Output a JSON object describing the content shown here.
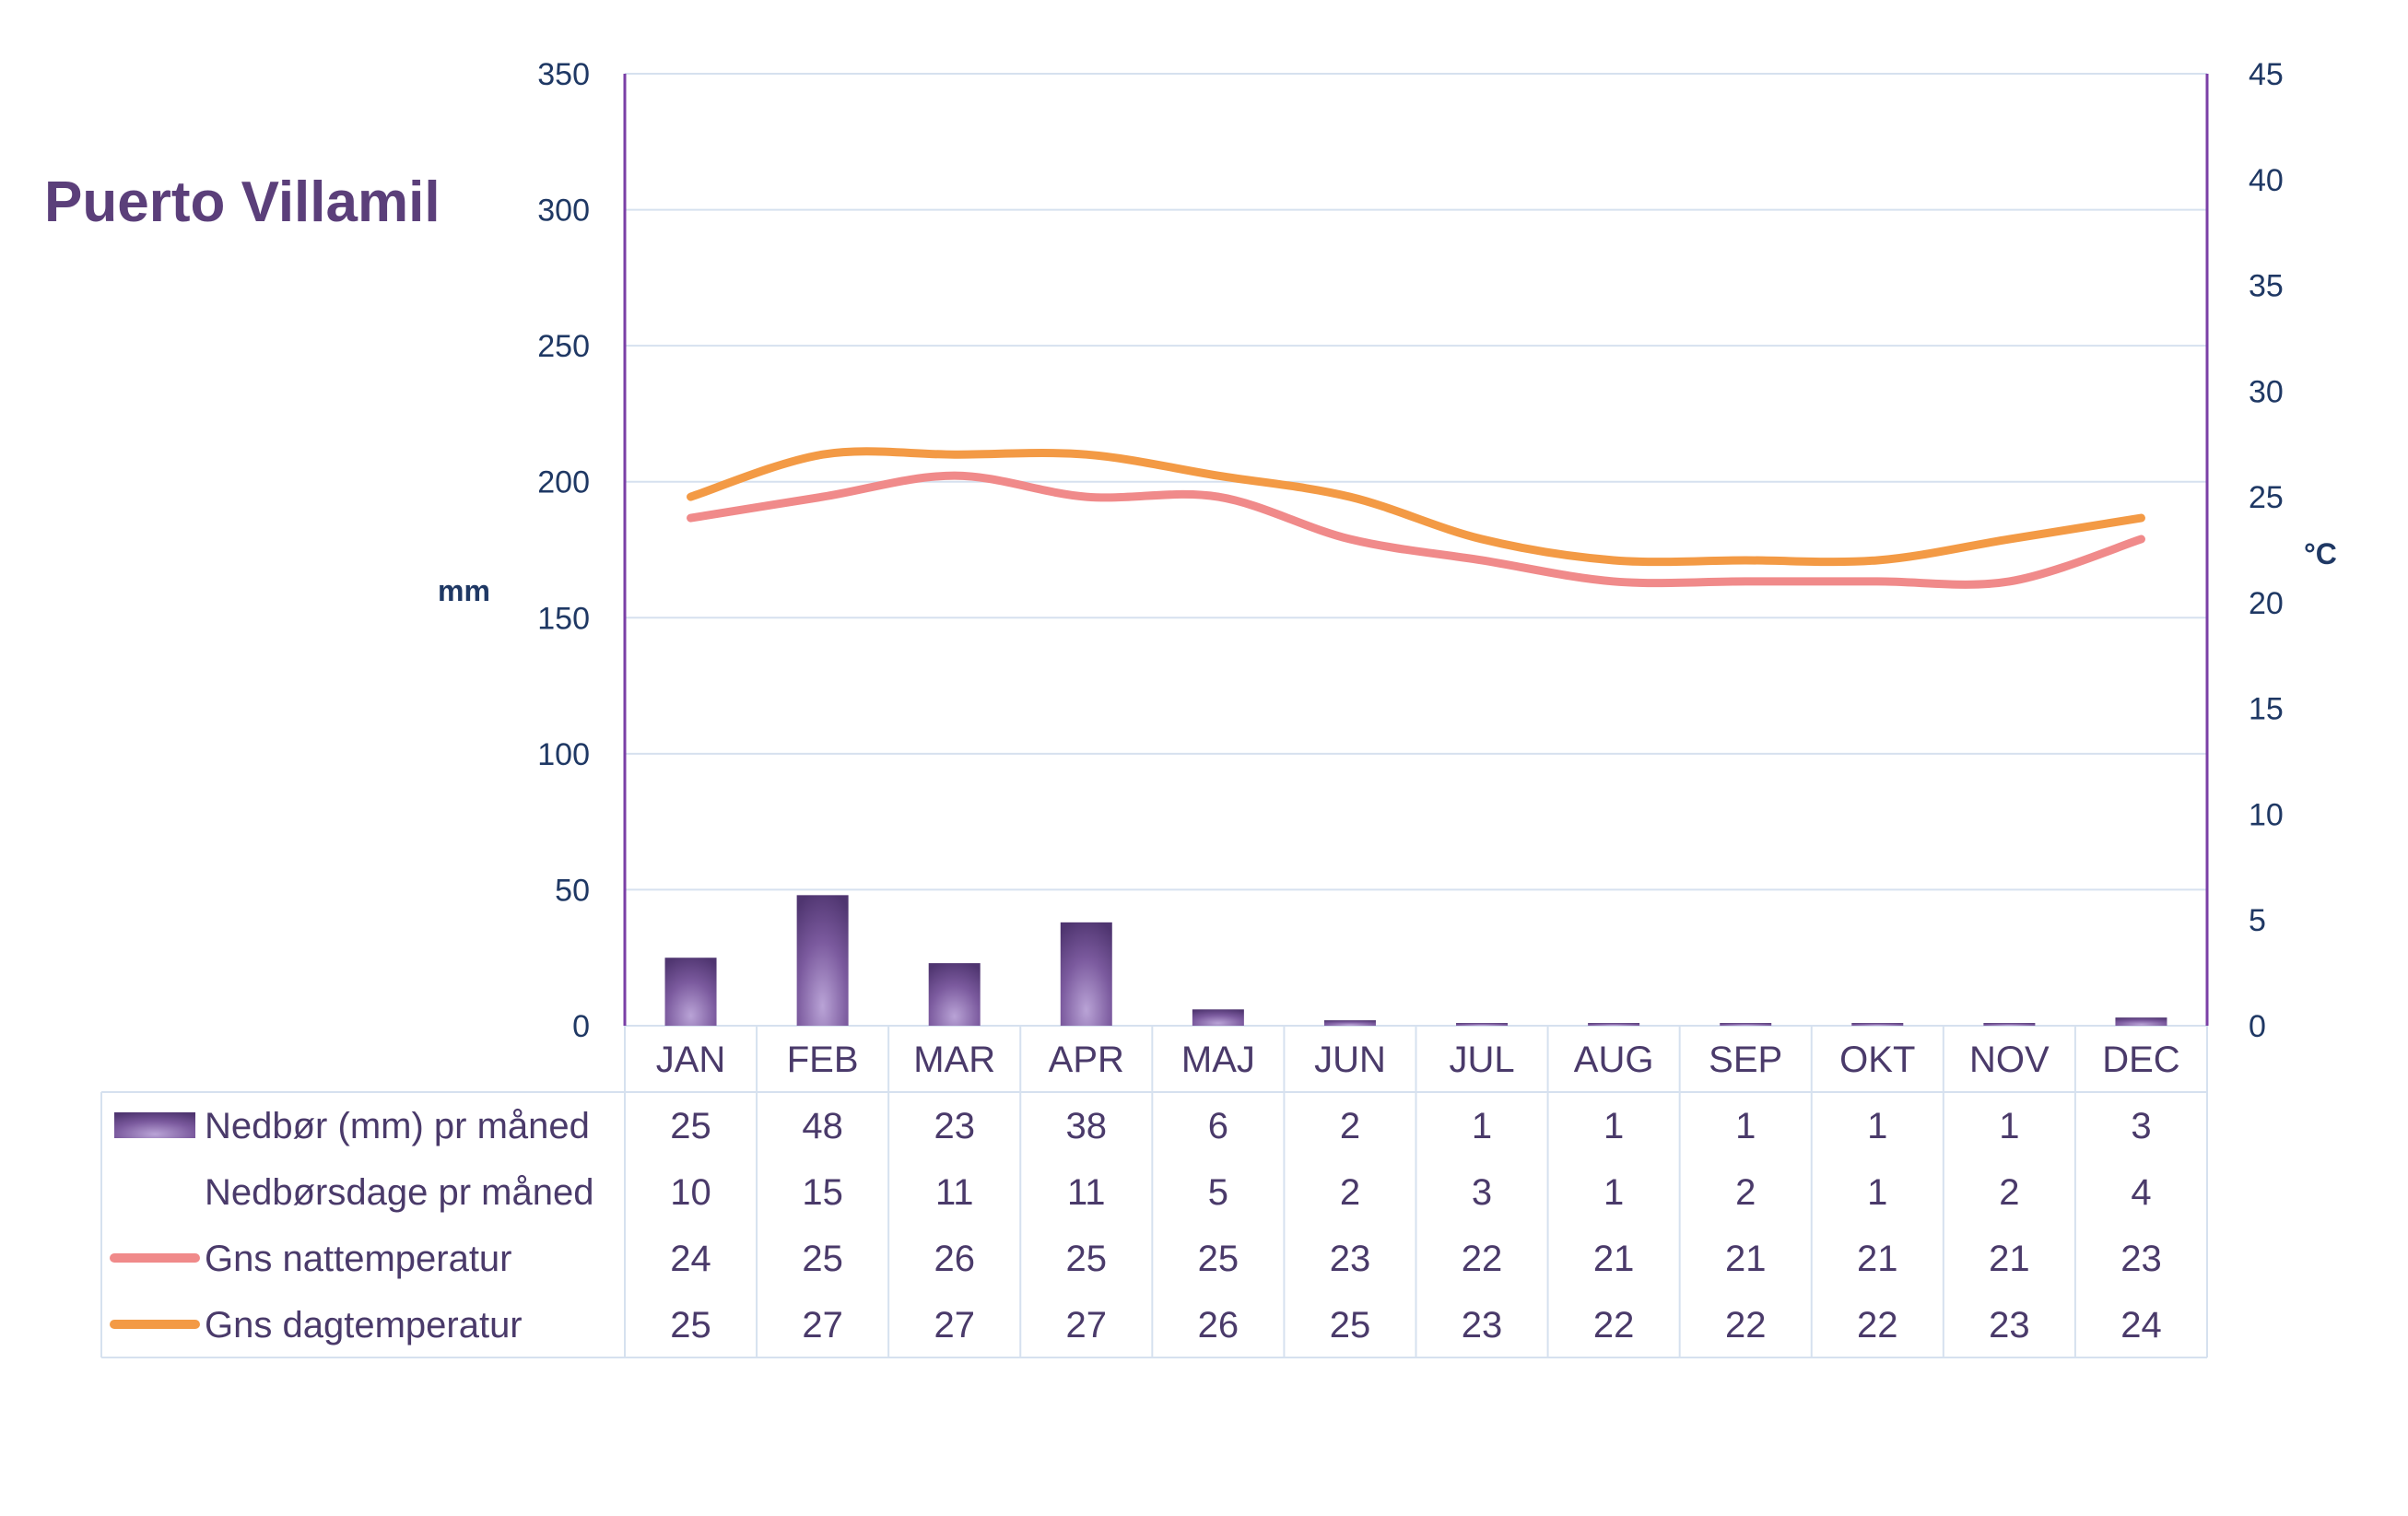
{
  "chart_data": {
    "type": "bar",
    "title": "Puerto Villamil",
    "categories": [
      "JAN",
      "FEB",
      "MAR",
      "APR",
      "MAJ",
      "JUN",
      "JUL",
      "AUG",
      "SEP",
      "OKT",
      "NOV",
      "DEC"
    ],
    "y_left": {
      "label": "mm",
      "min": 0,
      "max": 350,
      "ticks": [
        0,
        50,
        100,
        150,
        200,
        250,
        300,
        350
      ]
    },
    "y_right": {
      "label": "°C",
      "min": 0,
      "max": 45,
      "ticks": [
        0,
        5,
        10,
        15,
        20,
        25,
        30,
        35,
        40,
        45
      ]
    },
    "grid": true,
    "series": [
      {
        "name": "Nedbør (mm) pr måned",
        "kind": "bar",
        "axis": "left",
        "color": "#5b3f7a",
        "values": [
          25,
          48,
          23,
          38,
          6,
          2,
          1,
          1,
          1,
          1,
          1,
          3
        ]
      },
      {
        "name": "Nedbørsdage pr måned",
        "kind": "table-only",
        "values": [
          10,
          15,
          11,
          11,
          5,
          2,
          3,
          1,
          2,
          1,
          2,
          4
        ]
      },
      {
        "name": "Gns nattemperatur",
        "kind": "line",
        "axis": "right",
        "color": "#f08a8a",
        "values": [
          24,
          25,
          26,
          25,
          25,
          23,
          22,
          21,
          21,
          21,
          21,
          23
        ]
      },
      {
        "name": "Gns dagtemperatur",
        "kind": "line",
        "axis": "right",
        "color": "#f39a45",
        "values": [
          25,
          27,
          27,
          27,
          26,
          25,
          23,
          22,
          22,
          22,
          23,
          24
        ]
      }
    ],
    "colors": {
      "title": "#5b3f7a",
      "axis": "#7a3fa6",
      "grid": "#d6e1ef",
      "tick": "#1f3864",
      "table_text": "#4a3a6a"
    }
  }
}
